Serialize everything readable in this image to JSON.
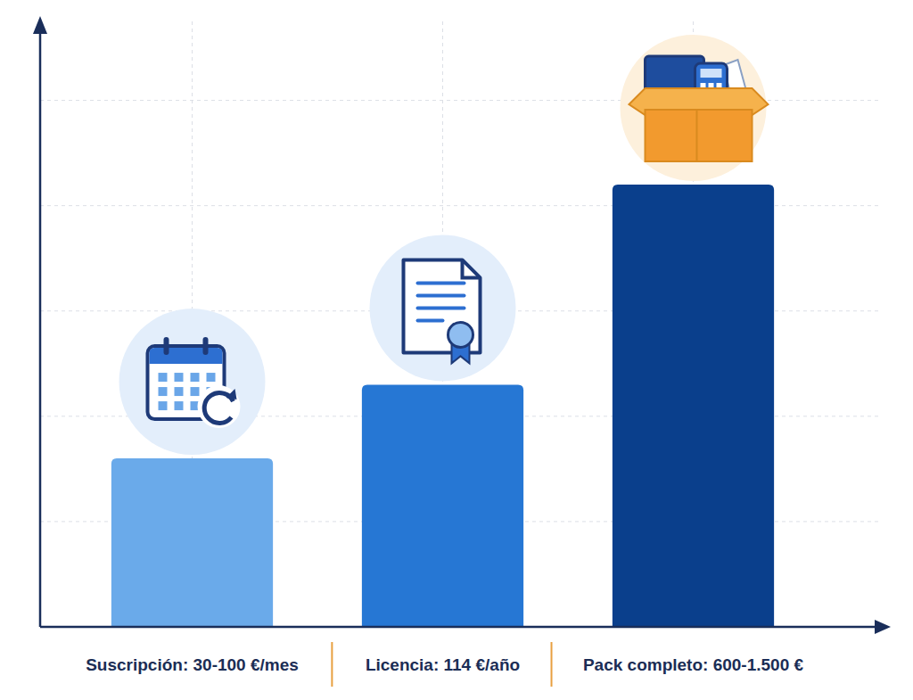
{
  "chart_data": {
    "type": "bar",
    "categories": [
      "Suscripción: 30-100 €/mes",
      "Licencia: 114 €/año",
      "Pack completo: 600-1.500 €"
    ],
    "values": [
      1.6,
      2.3,
      4.2
    ],
    "colors": [
      "#6aaaea",
      "#2677d4",
      "#0a3f8c"
    ],
    "ylim": [
      0,
      5.75
    ],
    "yticks": [
      0,
      1,
      2,
      3,
      4,
      5
    ],
    "grid": true,
    "tick_labels": false
  }
}
